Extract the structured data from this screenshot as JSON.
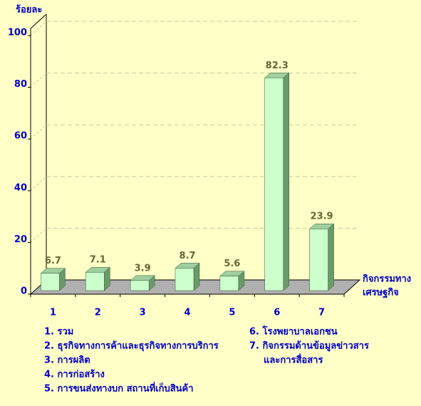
{
  "chart_data": {
    "type": "bar",
    "y_label": "ร้อยละ",
    "x_label": [
      "กิจกรรมทาง",
      "เศรษฐกิจ"
    ],
    "categories": [
      "1",
      "2",
      "3",
      "4",
      "5",
      "6",
      "7"
    ],
    "values": [
      6.7,
      7.1,
      3.9,
      8.7,
      5.6,
      82.3,
      23.9
    ],
    "color": "#ccffcc",
    "ylim": [
      0,
      100
    ],
    "yticks": [
      0,
      20,
      40,
      60,
      80,
      100
    ],
    "grid": true,
    "notes_left": [
      "1. รวม",
      "2. ธุรกิจทางการค้าและธุรกิจทางการบริการ",
      "3. การผลิต",
      "4. การก่อสร้าง",
      "5. การขนส่งทางบก สถานที่เก็บสินค้า"
    ],
    "notes_right": [
      "6. โรงพยาบาลเอกชน",
      "7. กิจกรรมด้านข้อมูลข่าวสาร",
      "และการสื่อสาร"
    ]
  }
}
